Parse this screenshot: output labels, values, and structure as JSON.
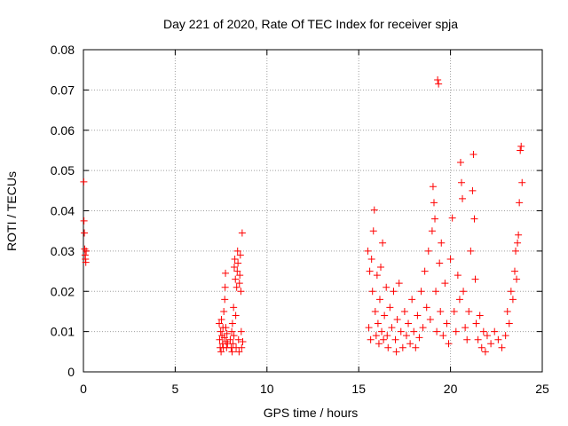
{
  "chart_data": {
    "type": "scatter",
    "title": "Day 221 of 2020, Rate Of TEC Index for receiver spja",
    "xlabel": "GPS time / hours",
    "ylabel": "ROTI / TECUs",
    "xlim": [
      0,
      25
    ],
    "ylim": [
      0,
      0.08
    ],
    "xticks": [
      0,
      5,
      10,
      15,
      20,
      25
    ],
    "yticks": [
      0,
      0.01,
      0.02,
      0.03,
      0.04,
      0.05,
      0.06,
      0.07,
      0.08
    ],
    "xtick_labels": [
      "0",
      "5",
      "10",
      "15",
      "20",
      "25"
    ],
    "ytick_labels": [
      "0",
      "0.01",
      "0.02",
      "0.03",
      "0.04",
      "0.05",
      "0.06",
      "0.07",
      "0.08"
    ],
    "grid": true,
    "marker": "+",
    "color": "#ff0000",
    "points": [
      [
        0.02,
        0.0472
      ],
      [
        0.03,
        0.0375
      ],
      [
        0.05,
        0.0345
      ],
      [
        0.07,
        0.0305
      ],
      [
        0.09,
        0.029
      ],
      [
        0.11,
        0.028
      ],
      [
        0.13,
        0.0272
      ],
      [
        0.15,
        0.03
      ],
      [
        7.4,
        0.012
      ],
      [
        7.42,
        0.008
      ],
      [
        7.45,
        0.006
      ],
      [
        7.48,
        0.01
      ],
      [
        7.5,
        0.005
      ],
      [
        7.52,
        0.013
      ],
      [
        7.55,
        0.009
      ],
      [
        7.58,
        0.007
      ],
      [
        7.6,
        0.011
      ],
      [
        7.62,
        0.006
      ],
      [
        7.65,
        0.015
      ],
      [
        7.68,
        0.0085
      ],
      [
        7.7,
        0.018
      ],
      [
        7.72,
        0.021
      ],
      [
        7.74,
        0.0245
      ],
      [
        7.76,
        0.011
      ],
      [
        7.78,
        0.0075
      ],
      [
        7.8,
        0.006
      ],
      [
        7.82,
        0.0095
      ],
      [
        7.85,
        0.007
      ],
      [
        8.0,
        0.008
      ],
      [
        8.05,
        0.006
      ],
      [
        8.08,
        0.01
      ],
      [
        8.1,
        0.005
      ],
      [
        8.12,
        0.012
      ],
      [
        8.15,
        0.007
      ],
      [
        8.18,
        0.016
      ],
      [
        8.2,
        0.009
      ],
      [
        8.22,
        0.026
      ],
      [
        8.25,
        0.028
      ],
      [
        8.28,
        0.023
      ],
      [
        8.3,
        0.014
      ],
      [
        8.32,
        0.006
      ],
      [
        8.35,
        0.021
      ],
      [
        8.38,
        0.025
      ],
      [
        8.4,
        0.03
      ],
      [
        8.42,
        0.027
      ],
      [
        8.45,
        0.008
      ],
      [
        8.48,
        0.005
      ],
      [
        8.5,
        0.022
      ],
      [
        8.52,
        0.024
      ],
      [
        8.55,
        0.029
      ],
      [
        8.58,
        0.02
      ],
      [
        8.6,
        0.01
      ],
      [
        8.62,
        0.006
      ],
      [
        8.65,
        0.0345
      ],
      [
        8.68,
        0.0075
      ],
      [
        15.5,
        0.03
      ],
      [
        15.55,
        0.011
      ],
      [
        15.6,
        0.025
      ],
      [
        15.65,
        0.008
      ],
      [
        15.7,
        0.028
      ],
      [
        15.75,
        0.02
      ],
      [
        15.8,
        0.035
      ],
      [
        15.85,
        0.0402
      ],
      [
        15.9,
        0.015
      ],
      [
        15.95,
        0.009
      ],
      [
        16.0,
        0.024
      ],
      [
        16.05,
        0.012
      ],
      [
        16.1,
        0.007
      ],
      [
        16.15,
        0.018
      ],
      [
        16.2,
        0.026
      ],
      [
        16.25,
        0.01
      ],
      [
        16.3,
        0.032
      ],
      [
        16.35,
        0.008
      ],
      [
        16.4,
        0.014
      ],
      [
        16.5,
        0.021
      ],
      [
        16.55,
        0.009
      ],
      [
        16.6,
        0.006
      ],
      [
        16.7,
        0.016
      ],
      [
        16.8,
        0.011
      ],
      [
        16.9,
        0.02
      ],
      [
        17.0,
        0.008
      ],
      [
        17.05,
        0.005
      ],
      [
        17.1,
        0.013
      ],
      [
        17.2,
        0.022
      ],
      [
        17.3,
        0.01
      ],
      [
        17.4,
        0.006
      ],
      [
        17.5,
        0.015
      ],
      [
        17.6,
        0.009
      ],
      [
        17.7,
        0.012
      ],
      [
        17.8,
        0.007
      ],
      [
        17.9,
        0.018
      ],
      [
        18.0,
        0.01
      ],
      [
        18.1,
        0.006
      ],
      [
        18.2,
        0.014
      ],
      [
        18.3,
        0.0085
      ],
      [
        18.4,
        0.02
      ],
      [
        18.5,
        0.011
      ],
      [
        18.6,
        0.025
      ],
      [
        18.7,
        0.016
      ],
      [
        18.8,
        0.03
      ],
      [
        18.9,
        0.013
      ],
      [
        19.0,
        0.035
      ],
      [
        19.05,
        0.046
      ],
      [
        19.1,
        0.042
      ],
      [
        19.15,
        0.038
      ],
      [
        19.2,
        0.02
      ],
      [
        19.25,
        0.01
      ],
      [
        19.3,
        0.0725
      ],
      [
        19.35,
        0.0715
      ],
      [
        19.4,
        0.027
      ],
      [
        19.45,
        0.015
      ],
      [
        19.5,
        0.032
      ],
      [
        19.6,
        0.009
      ],
      [
        19.7,
        0.022
      ],
      [
        19.8,
        0.012
      ],
      [
        19.9,
        0.007
      ],
      [
        20.0,
        0.028
      ],
      [
        20.1,
        0.0382
      ],
      [
        20.2,
        0.015
      ],
      [
        20.3,
        0.01
      ],
      [
        20.4,
        0.024
      ],
      [
        20.5,
        0.018
      ],
      [
        20.55,
        0.052
      ],
      [
        20.6,
        0.047
      ],
      [
        20.65,
        0.043
      ],
      [
        20.7,
        0.02
      ],
      [
        20.8,
        0.011
      ],
      [
        20.9,
        0.008
      ],
      [
        21.0,
        0.015
      ],
      [
        21.1,
        0.03
      ],
      [
        21.2,
        0.045
      ],
      [
        21.25,
        0.054
      ],
      [
        21.3,
        0.038
      ],
      [
        21.35,
        0.023
      ],
      [
        21.4,
        0.012
      ],
      [
        21.5,
        0.008
      ],
      [
        21.6,
        0.014
      ],
      [
        21.7,
        0.006
      ],
      [
        21.8,
        0.01
      ],
      [
        21.9,
        0.005
      ],
      [
        22.0,
        0.009
      ],
      [
        22.2,
        0.007
      ],
      [
        22.4,
        0.01
      ],
      [
        22.6,
        0.008
      ],
      [
        22.8,
        0.006
      ],
      [
        23.0,
        0.009
      ],
      [
        23.1,
        0.015
      ],
      [
        23.2,
        0.012
      ],
      [
        23.3,
        0.02
      ],
      [
        23.4,
        0.018
      ],
      [
        23.5,
        0.025
      ],
      [
        23.55,
        0.03
      ],
      [
        23.6,
        0.023
      ],
      [
        23.65,
        0.032
      ],
      [
        23.7,
        0.034
      ],
      [
        23.75,
        0.042
      ],
      [
        23.8,
        0.055
      ],
      [
        23.85,
        0.056
      ],
      [
        23.9,
        0.047
      ]
    ]
  }
}
